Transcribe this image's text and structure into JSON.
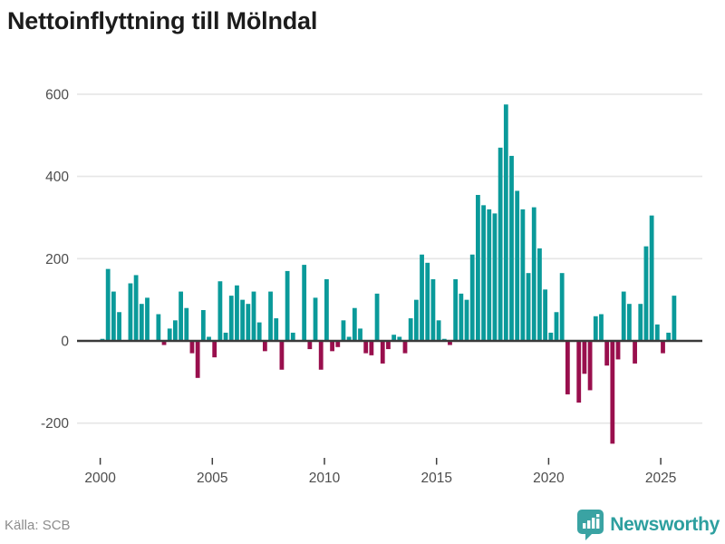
{
  "title": "Nettoinflyttning till Mölndal",
  "footer": {
    "source": "Källa: SCB",
    "brand": "Newsworthy"
  },
  "colors": {
    "positive": "#0a9a9a",
    "negative": "#990f4d",
    "grid": "#e6e6e6",
    "axis": "#3a3a3a",
    "tick": "#3d3d3d",
    "label": "#4d4d4d",
    "brand_teal": "#3aa3a3"
  },
  "chart_data": {
    "type": "bar",
    "title": "Nettoinflyttning till Mölndal",
    "frequency": "quarterly",
    "x_start": {
      "year": 2000,
      "quarter": 1
    },
    "x_end": {
      "year": 2025,
      "quarter": 3
    },
    "values": [
      5,
      175,
      120,
      70,
      0,
      140,
      160,
      90,
      105,
      0,
      65,
      -10,
      30,
      50,
      120,
      80,
      -30,
      -90,
      75,
      10,
      -40,
      145,
      20,
      110,
      135,
      100,
      90,
      120,
      45,
      -25,
      120,
      55,
      -70,
      170,
      20,
      0,
      185,
      -20,
      105,
      -70,
      150,
      -25,
      -15,
      50,
      10,
      80,
      30,
      -30,
      -35,
      115,
      -55,
      -20,
      15,
      10,
      -30,
      55,
      100,
      210,
      190,
      150,
      50,
      5,
      -10,
      150,
      115,
      100,
      210,
      355,
      330,
      320,
      310,
      470,
      575,
      450,
      365,
      320,
      165,
      325,
      225,
      125,
      20,
      70,
      165,
      -130,
      0,
      -150,
      -80,
      -120,
      60,
      65,
      -60,
      -250,
      -45,
      120,
      90,
      -55,
      90,
      230,
      305,
      40,
      -30,
      20,
      110
    ],
    "y_ticks": [
      -200,
      0,
      200,
      400,
      600
    ],
    "x_ticks": [
      2000,
      2005,
      2010,
      2015,
      2020,
      2025
    ],
    "ylim": [
      -300,
      660
    ],
    "grid": true,
    "legend": false
  }
}
